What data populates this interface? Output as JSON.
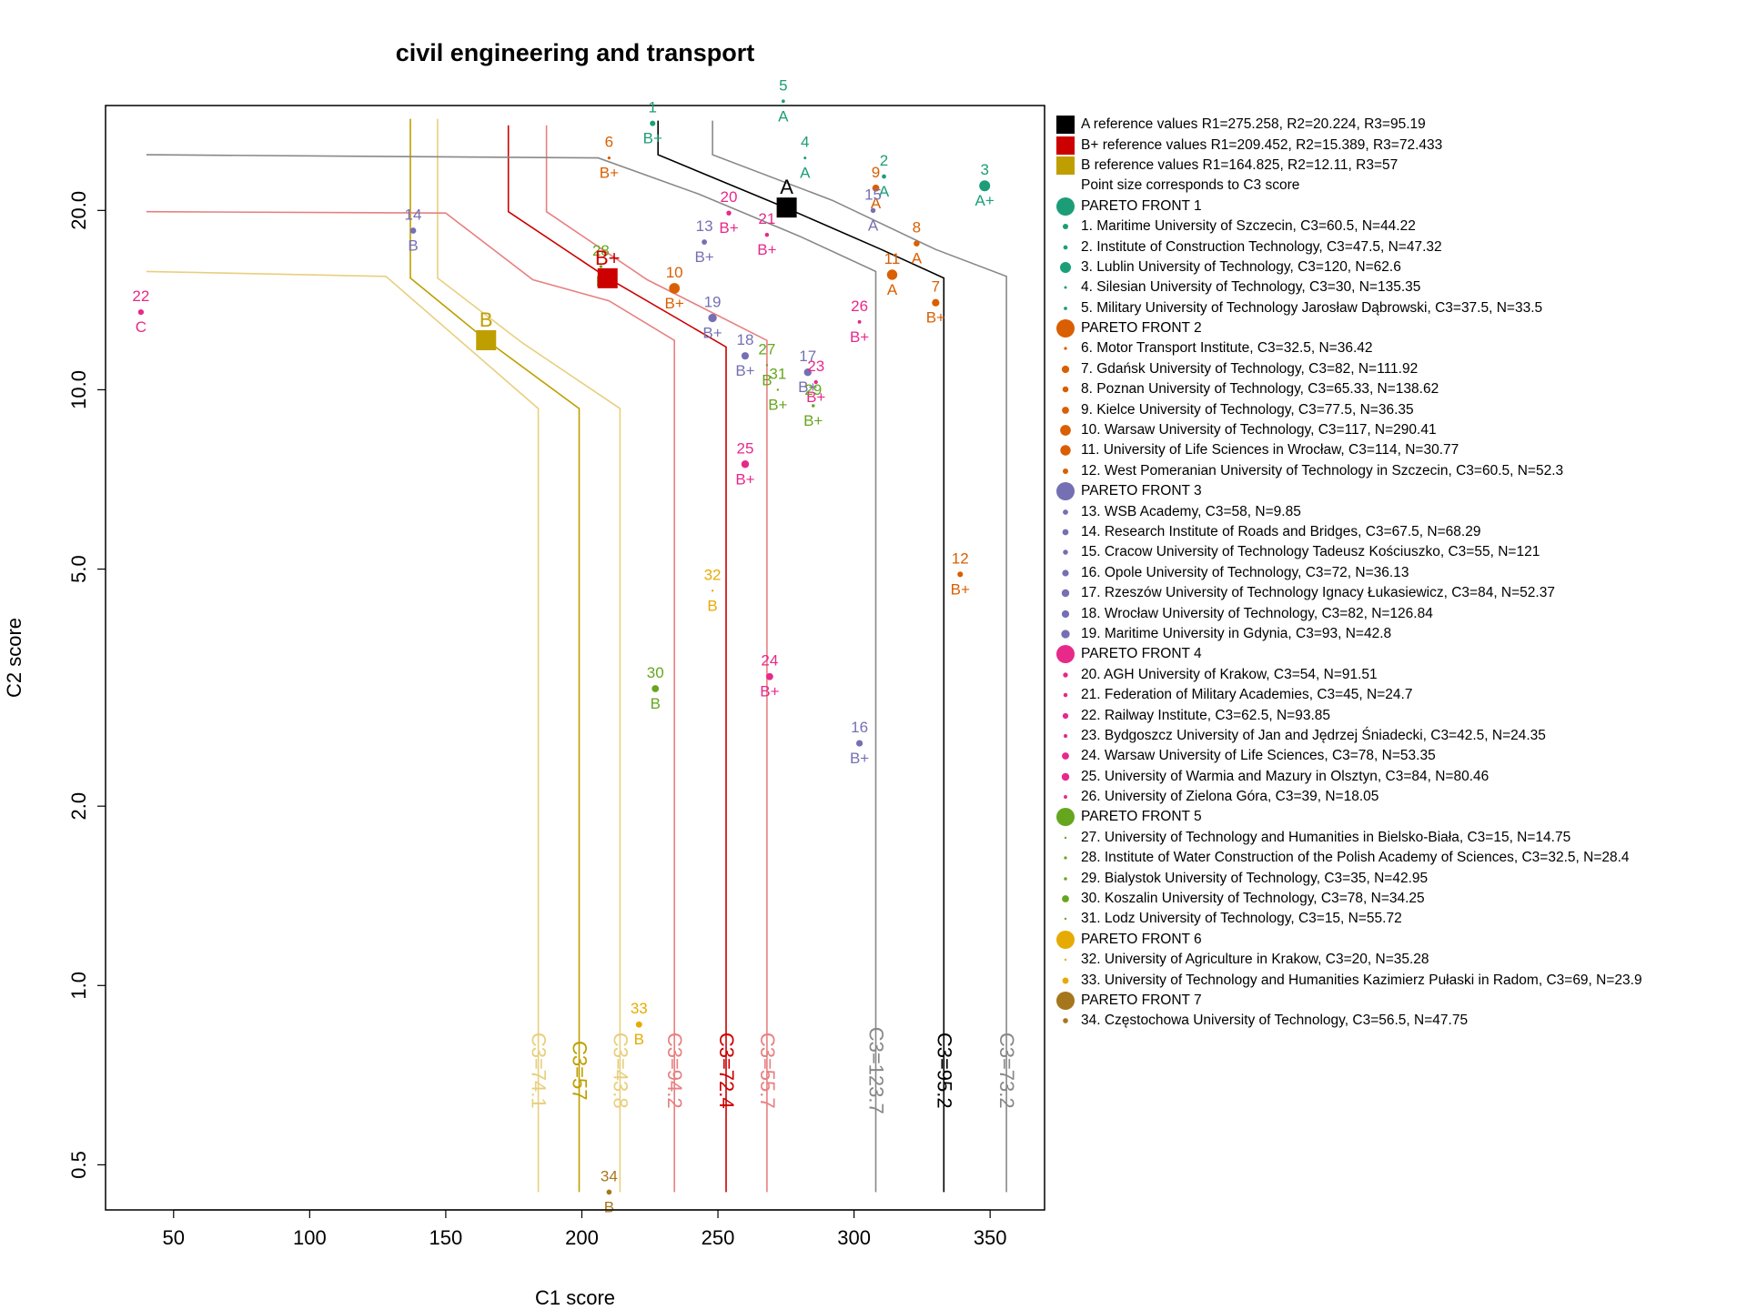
{
  "chart_data": {
    "type": "scatter",
    "title": "civil engineering and transport",
    "xlabel": "C1 score",
    "ylabel": "C2 score",
    "xlim": [
      25,
      370
    ],
    "ylim": [
      0.42,
      30
    ],
    "y_scale": "log",
    "grid": false,
    "legend_position": "right",
    "x_ticks": [
      50,
      100,
      150,
      200,
      250,
      300,
      350
    ],
    "y_ticks": [
      0.5,
      1.0,
      2.0,
      5.0,
      10.0,
      20.0
    ],
    "y_tick_labels": [
      "0.5",
      "1.0",
      "2.0",
      "5.0",
      "10.0",
      "20.0"
    ],
    "references": [
      {
        "label": "A",
        "c1": 275.258,
        "c2": 20.224,
        "color": "#000000",
        "legend": "A reference values R1=275.258, R2=20.224, R3=95.19"
      },
      {
        "label": "B+",
        "c1": 209.452,
        "c2": 15.389,
        "color": "#cc0000",
        "legend": "B+ reference values R1=209.452, R2=15.389, R3=72.433"
      },
      {
        "label": "B",
        "c1": 164.825,
        "c2": 12.11,
        "color": "#bf9f00",
        "legend": "B reference values R1=164.825, R2=12.11, R3=57"
      }
    ],
    "legend_note": "Point size corresponds to C3 score",
    "front_colors": [
      "#1b9e77",
      "#d95f02",
      "#7570b3",
      "#e7298a",
      "#66a61e",
      "#e6ab02",
      "#a6761d"
    ],
    "fronts": [
      {
        "label": "PARETO FRONT 1",
        "color": "#1b9e77"
      },
      {
        "label": "PARETO FRONT 2",
        "color": "#d95f02"
      },
      {
        "label": "PARETO FRONT 3",
        "color": "#7570b3"
      },
      {
        "label": "PARETO FRONT 4",
        "color": "#e7298a"
      },
      {
        "label": "PARETO FRONT 5",
        "color": "#66a61e"
      },
      {
        "label": "PARETO FRONT 6",
        "color": "#e6ab02"
      },
      {
        "label": "PARETO FRONT 7",
        "color": "#a6761d"
      }
    ],
    "points": [
      {
        "id": "1",
        "front": 1,
        "c1": 226,
        "c2": 28.0,
        "c3": 60.5,
        "grade": "B+",
        "legend": "1. Maritime University of Szczecin, C3=60.5, N=44.22"
      },
      {
        "id": "2",
        "front": 1,
        "c1": 311,
        "c2": 22.8,
        "c3": 47.5,
        "grade": "A",
        "legend": "2. Institute of Construction Technology, C3=47.5, N=47.32"
      },
      {
        "id": "3",
        "front": 1,
        "c1": 348,
        "c2": 22.0,
        "c3": 120,
        "grade": "A+",
        "legend": "3. Lublin University of Technology, C3=120, N=62.6"
      },
      {
        "id": "4",
        "front": 1,
        "c1": 282,
        "c2": 24.5,
        "c3": 30,
        "grade": "A",
        "legend": "4. Silesian University of Technology, C3=30, N=135.35"
      },
      {
        "id": "5",
        "front": 1,
        "c1": 274,
        "c2": 30.5,
        "c3": 37.5,
        "grade": "A",
        "legend": "5. Military University of Technology Jarosław Dąbrowski, C3=37.5, N=33.5"
      },
      {
        "id": "6",
        "front": 2,
        "c1": 210,
        "c2": 24.5,
        "c3": 32.5,
        "grade": "B+",
        "legend": "6. Motor Transport Institute, C3=32.5, N=36.42"
      },
      {
        "id": "7",
        "front": 2,
        "c1": 330,
        "c2": 14.0,
        "c3": 82,
        "grade": "B+",
        "legend": "7. Gdańsk University of Technology, C3=82, N=111.92"
      },
      {
        "id": "8",
        "front": 2,
        "c1": 323,
        "c2": 17.6,
        "c3": 65.33,
        "grade": "A",
        "legend": "8. Poznan University of Technology, C3=65.33, N=138.62"
      },
      {
        "id": "9",
        "front": 2,
        "c1": 308,
        "c2": 21.8,
        "c3": 77.5,
        "grade": "A",
        "legend": "9. Kielce University of Technology, C3=77.5, N=36.35"
      },
      {
        "id": "10",
        "front": 2,
        "c1": 234,
        "c2": 14.8,
        "c3": 117,
        "grade": "B+",
        "legend": "10. Warsaw University of Technology, C3=117, N=290.41"
      },
      {
        "id": "11",
        "front": 2,
        "c1": 314,
        "c2": 15.6,
        "c3": 114,
        "grade": "A",
        "legend": "11. University of Life Sciences in Wrocław, C3=114, N=30.77"
      },
      {
        "id": "12",
        "front": 2,
        "c1": 339,
        "c2": 4.9,
        "c3": 60.5,
        "grade": "B+",
        "legend": "12. West Pomeranian University of Technology in Szczecin, C3=60.5, N=52.3"
      },
      {
        "id": "13",
        "front": 3,
        "c1": 245,
        "c2": 17.7,
        "c3": 58,
        "grade": "B+",
        "legend": "13. WSB Academy, C3=58, N=9.85"
      },
      {
        "id": "14",
        "front": 3,
        "c1": 138,
        "c2": 18.5,
        "c3": 67.5,
        "grade": "B",
        "legend": "14. Research Institute of Roads and Bridges, C3=67.5, N=68.29"
      },
      {
        "id": "15",
        "front": 3,
        "c1": 307,
        "c2": 20.0,
        "c3": 55,
        "grade": "A",
        "legend": "15. Cracow University of Technology Tadeusz Kościuszko, C3=55, N=121"
      },
      {
        "id": "16",
        "front": 3,
        "c1": 302,
        "c2": 2.55,
        "c3": 72,
        "grade": "B+",
        "legend": "16. Opole University of Technology, C3=72, N=36.13"
      },
      {
        "id": "17",
        "front": 3,
        "c1": 283,
        "c2": 10.7,
        "c3": 84,
        "grade": "B+",
        "legend": "17. Rzeszów University of Technology Ignacy Łukasiewicz, C3=84, N=52.37"
      },
      {
        "id": "18",
        "front": 3,
        "c1": 260,
        "c2": 11.4,
        "c3": 82,
        "grade": "B+",
        "legend": "18. Wrocław University of Technology, C3=82, N=126.84"
      },
      {
        "id": "19",
        "front": 3,
        "c1": 248,
        "c2": 13.2,
        "c3": 93,
        "grade": "B+",
        "legend": "19. Maritime University in Gdynia, C3=93, N=42.8"
      },
      {
        "id": "20",
        "front": 4,
        "c1": 254,
        "c2": 19.8,
        "c3": 54,
        "grade": "B+",
        "legend": "20. AGH University of Krakow, C3=54, N=91.51"
      },
      {
        "id": "21",
        "front": 4,
        "c1": 268,
        "c2": 18.2,
        "c3": 45,
        "grade": "B+",
        "legend": "21. Federation of Military Academies, C3=45, N=24.7"
      },
      {
        "id": "22",
        "front": 4,
        "c1": 38,
        "c2": 13.5,
        "c3": 62.5,
        "grade": "C",
        "legend": "22. Railway Institute, C3=62.5, N=93.85"
      },
      {
        "id": "23",
        "front": 4,
        "c1": 286,
        "c2": 10.3,
        "c3": 42.5,
        "grade": "B+",
        "legend": "23. Bydgoszcz University of Jan and Jędrzej Śniadecki, C3=42.5, N=24.35"
      },
      {
        "id": "24",
        "front": 4,
        "c1": 269,
        "c2": 3.3,
        "c3": 78,
        "grade": "B+",
        "legend": "24. Warsaw University of Life Sciences, C3=78, N=53.35"
      },
      {
        "id": "25",
        "front": 4,
        "c1": 260,
        "c2": 7.5,
        "c3": 84,
        "grade": "B+",
        "legend": "25. University of Warmia and Mazury in Olsztyn, C3=84, N=80.46"
      },
      {
        "id": "26",
        "front": 4,
        "c1": 302,
        "c2": 13.0,
        "c3": 39,
        "grade": "B+",
        "legend": "26. University of Zielona Góra, C3=39, N=18.05"
      },
      {
        "id": "27",
        "front": 5,
        "c1": 268,
        "c2": 11.0,
        "c3": 15,
        "grade": "B",
        "legend": "27. University of Technology and Humanities in Bielsko-Biała, C3=15, N=14.75"
      },
      {
        "id": "28",
        "front": 5,
        "c1": 207,
        "c2": 16.1,
        "c3": 32.5,
        "grade": "B",
        "legend": "28. Institute of Water Construction of the Polish Academy of Sciences, C3=32.5, N=28.4"
      },
      {
        "id": "29",
        "front": 5,
        "c1": 285,
        "c2": 9.4,
        "c3": 35,
        "grade": "B+",
        "legend": "29. Bialystok University of Technology, C3=35, N=42.95"
      },
      {
        "id": "30",
        "front": 5,
        "c1": 227,
        "c2": 3.15,
        "c3": 78,
        "grade": "B",
        "legend": "30. Koszalin University of Technology, C3=78, N=34.25"
      },
      {
        "id": "31",
        "front": 5,
        "c1": 272,
        "c2": 10.0,
        "c3": 15,
        "grade": "B+",
        "legend": "31. Lodz University of Technology, C3=15, N=55.72"
      },
      {
        "id": "32",
        "front": 6,
        "c1": 248,
        "c2": 4.6,
        "c3": 20,
        "grade": "B",
        "legend": "32. University of Agriculture in Krakow, C3=20, N=35.28"
      },
      {
        "id": "33",
        "front": 6,
        "c1": 221,
        "c2": 0.86,
        "c3": 69,
        "grade": "B",
        "legend": "33. University of Technology and Humanities Kazimierz Pułaski in Radom, C3=69, N=23.9"
      },
      {
        "id": "34",
        "front": 7,
        "c1": 210,
        "c2": 0.45,
        "c3": 56.5,
        "grade": "B",
        "legend": "34. Częstochowa University of Technology, C3=56.5, N=47.75"
      }
    ],
    "contours": [
      {
        "label": "C3=74.1",
        "color": "#e8cf7e",
        "path": [
          [
            40,
            15.8
          ],
          [
            128,
            15.5
          ],
          [
            184,
            9.3
          ],
          [
            184,
            0.45
          ]
        ]
      },
      {
        "label": "C3=57",
        "color": "#bf9f00",
        "path": [
          [
            137,
            28.5
          ],
          [
            137,
            15.4
          ],
          [
            165,
            12.1
          ],
          [
            199,
            9.3
          ],
          [
            199,
            0.45
          ]
        ]
      },
      {
        "label": "C3=43.8",
        "color": "#e8cf7e",
        "path": [
          [
            147,
            28.5
          ],
          [
            147,
            15.4
          ],
          [
            178,
            12.0
          ],
          [
            214,
            9.3
          ],
          [
            214,
            0.45
          ]
        ]
      },
      {
        "label": "C3=94.2",
        "color": "#e88080",
        "path": [
          [
            40,
            19.9
          ],
          [
            150,
            19.8
          ],
          [
            182,
            15.3
          ],
          [
            210,
            14.1
          ],
          [
            234,
            12.1
          ],
          [
            234,
            0.45
          ]
        ]
      },
      {
        "label": "C3=72.4",
        "color": "#cc0000",
        "path": [
          [
            173,
            27.8
          ],
          [
            173,
            19.9
          ],
          [
            209.5,
            15.4
          ],
          [
            253,
            11.8
          ],
          [
            253,
            0.45
          ]
        ]
      },
      {
        "label": "C3=55.7",
        "color": "#e88080",
        "path": [
          [
            187,
            27.8
          ],
          [
            187,
            19.9
          ],
          [
            224,
            15.3
          ],
          [
            268,
            12.1
          ],
          [
            268,
            0.45
          ]
        ]
      },
      {
        "label": "C3=123.7",
        "color": "#888888",
        "path": [
          [
            40,
            24.8
          ],
          [
            206,
            24.5
          ],
          [
            243,
            21.3
          ],
          [
            280,
            18.1
          ],
          [
            308,
            15.8
          ],
          [
            308,
            0.45
          ]
        ]
      },
      {
        "label": "C3=95.2",
        "color": "#000000",
        "path": [
          [
            228,
            28.3
          ],
          [
            228,
            24.8
          ],
          [
            275,
            20.2
          ],
          [
            310,
            17.2
          ],
          [
            333,
            15.4
          ],
          [
            333,
            0.45
          ]
        ]
      },
      {
        "label": "C3=73.2",
        "color": "#888888",
        "path": [
          [
            248,
            28.3
          ],
          [
            248,
            24.8
          ],
          [
            292,
            20.8
          ],
          [
            330,
            17.2
          ],
          [
            356,
            15.5
          ],
          [
            356,
            0.45
          ]
        ]
      }
    ]
  }
}
